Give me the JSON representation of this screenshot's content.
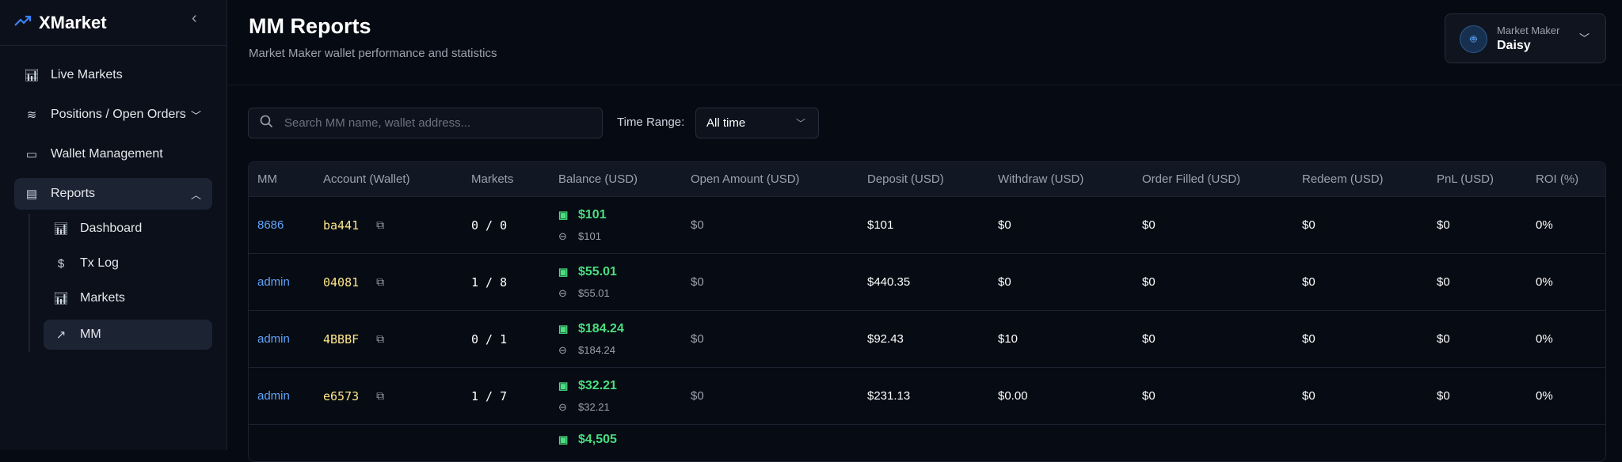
{
  "app": {
    "name": "XMarket",
    "logo_icon": "trending-up-icon"
  },
  "sidebar": {
    "items": [
      {
        "label": "Live Markets",
        "icon": "bar-chart-icon"
      },
      {
        "label": "Positions / Open Orders",
        "icon": "layers-icon"
      },
      {
        "label": "Wallet Management",
        "icon": "wallet-icon"
      },
      {
        "label": "Reports",
        "icon": "file-icon",
        "expanded": true,
        "active": true
      },
      {
        "label": "Dashboard",
        "icon": "bar-chart-icon"
      },
      {
        "label": "Tx Log",
        "icon": "dollar-icon"
      },
      {
        "label": "Markets",
        "icon": "bar-chart-icon"
      },
      {
        "label": "MM",
        "icon": "trending-up-icon",
        "active": true
      }
    ]
  },
  "header": {
    "title": "MM Reports",
    "subtitle": "Market Maker wallet performance and statistics"
  },
  "mm_selector": {
    "label": "Market Maker",
    "value": "Daisy"
  },
  "filters": {
    "search_placeholder": "Search MM name, wallet address...",
    "time_range_label": "Time Range:",
    "time_range_value": "All time"
  },
  "table": {
    "headers": [
      "MM",
      "Account (Wallet)",
      "Markets",
      "Balance (USD)",
      "Open Amount (USD)",
      "Deposit (USD)",
      "Withdraw (USD)",
      "Order Filled (USD)",
      "Redeem (USD)",
      "PnL (USD)",
      "ROI (%)"
    ],
    "rows": [
      {
        "mm": "8686",
        "account": "ba441",
        "markets": "0 / 0",
        "balance": "$101",
        "balance_linked": "$101",
        "open": "$0",
        "deposit": "$101",
        "withdraw": "$0",
        "filled": "$0",
        "redeem": "$0",
        "pnl": "$0",
        "roi": "0%"
      },
      {
        "mm": "admin",
        "account": "04081",
        "markets": "1 / 8",
        "balance": "$55.01",
        "balance_linked": "$55.01",
        "open": "$0",
        "deposit": "$440.35",
        "withdraw": "$0",
        "filled": "$0",
        "redeem": "$0",
        "pnl": "$0",
        "roi": "0%"
      },
      {
        "mm": "admin",
        "account": "4BBBF",
        "markets": "0 / 1",
        "balance": "$184.24",
        "balance_linked": "$184.24",
        "open": "$0",
        "deposit": "$92.43",
        "withdraw": "$10",
        "filled": "$0",
        "redeem": "$0",
        "pnl": "$0",
        "roi": "0%"
      },
      {
        "mm": "admin",
        "account": "e6573",
        "markets": "1 / 7",
        "balance": "$32.21",
        "balance_linked": "$32.21",
        "open": "$0",
        "deposit": "$231.13",
        "withdraw": "$0.00",
        "filled": "$0",
        "redeem": "$0",
        "pnl": "$0",
        "roi": "0%"
      },
      {
        "balance": "$4,505"
      }
    ]
  },
  "colors": {
    "accent": "#60a5fa",
    "balance": "#4ade80",
    "wallet": "#fde68a",
    "background": "#060a12"
  }
}
